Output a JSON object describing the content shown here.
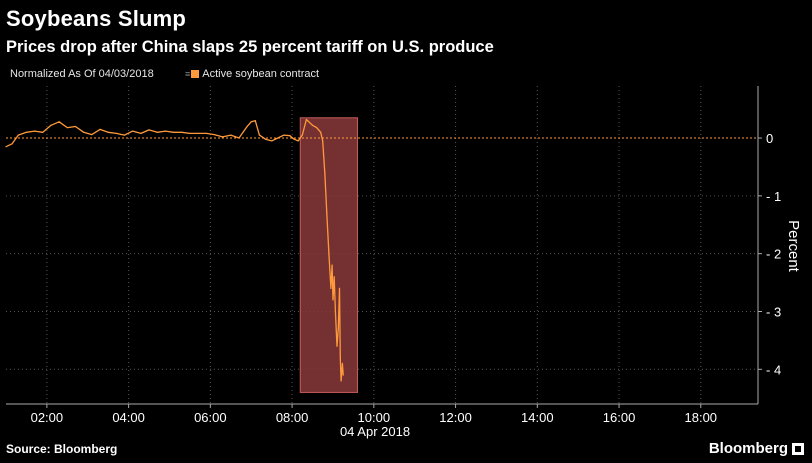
{
  "title": "Soybeans Slump",
  "subtitle": "Prices drop after China slaps 25 percent tariff on U.S. produce",
  "normalized_label": "Normalized As Of 04/03/2018",
  "source": "Source: Bloomberg",
  "brand": "Bloomberg",
  "colors": {
    "series": "#ff9a3c",
    "highlight_fill": "#8a3a3a",
    "highlight_stroke": "#c85c5c",
    "grid": "#555555"
  },
  "chart_data": {
    "type": "line",
    "title": "Soybeans Slump",
    "subtitle": "Prices drop after China slaps 25 percent tariff on U.S. produce",
    "xlabel": "04 Apr 2018",
    "ylabel": "Percent",
    "x_unit": "hours since 00:00, 04 Apr 2018",
    "xlim": [
      1.0,
      19.4
    ],
    "ylim": [
      -4.6,
      0.9
    ],
    "x_ticks": [
      2,
      4,
      6,
      8,
      10,
      12,
      14,
      16,
      18
    ],
    "x_tick_labels": [
      "02:00",
      "04:00",
      "06:00",
      "08:00",
      "10:00",
      "12:00",
      "14:00",
      "16:00",
      "18:00"
    ],
    "date_label": "04 Apr 2018",
    "y_ticks": [
      0,
      -1,
      -2,
      -3,
      -4
    ],
    "y_tick_labels": [
      "0",
      "- 1",
      "- 2",
      "- 3",
      "- 4"
    ],
    "reference_line": 0,
    "highlight_region": {
      "x": [
        8.2,
        9.6
      ],
      "y": [
        -4.4,
        0.35
      ]
    },
    "grid": true,
    "legend": {
      "placement": "top-left",
      "entries": [
        "Active soybean contract"
      ]
    },
    "series": [
      {
        "name": "Active soybean contract",
        "x": [
          1.0,
          1.15,
          1.3,
          1.5,
          1.7,
          1.9,
          2.1,
          2.3,
          2.5,
          2.7,
          2.9,
          3.1,
          3.3,
          3.5,
          3.7,
          3.9,
          4.1,
          4.3,
          4.5,
          4.7,
          4.9,
          5.1,
          5.3,
          5.5,
          5.7,
          5.9,
          6.1,
          6.3,
          6.5,
          6.7,
          6.9,
          7.0,
          7.1,
          7.2,
          7.35,
          7.5,
          7.65,
          7.8,
          7.95,
          8.05,
          8.15,
          8.25,
          8.35,
          8.5,
          8.6,
          8.7,
          8.75,
          8.8,
          8.85,
          8.9,
          8.95,
          8.98,
          9.0,
          9.03,
          9.06,
          9.1,
          9.13,
          9.16,
          9.18,
          9.2,
          9.23,
          9.25
        ],
        "values": [
          -0.15,
          -0.1,
          0.05,
          0.1,
          0.12,
          0.1,
          0.22,
          0.28,
          0.18,
          0.2,
          0.1,
          0.06,
          0.15,
          0.1,
          0.08,
          0.05,
          0.12,
          0.08,
          0.14,
          0.1,
          0.12,
          0.1,
          0.1,
          0.08,
          0.08,
          0.08,
          0.06,
          0.02,
          0.05,
          0.0,
          0.2,
          0.28,
          0.3,
          0.05,
          -0.02,
          -0.05,
          0.0,
          0.05,
          0.04,
          -0.02,
          -0.05,
          0.05,
          0.32,
          0.22,
          0.18,
          0.1,
          -0.05,
          -0.6,
          -1.3,
          -2.0,
          -2.6,
          -2.2,
          -2.8,
          -2.4,
          -3.0,
          -3.6,
          -3.3,
          -2.6,
          -3.8,
          -4.2,
          -3.9,
          -4.1
        ]
      }
    ]
  }
}
